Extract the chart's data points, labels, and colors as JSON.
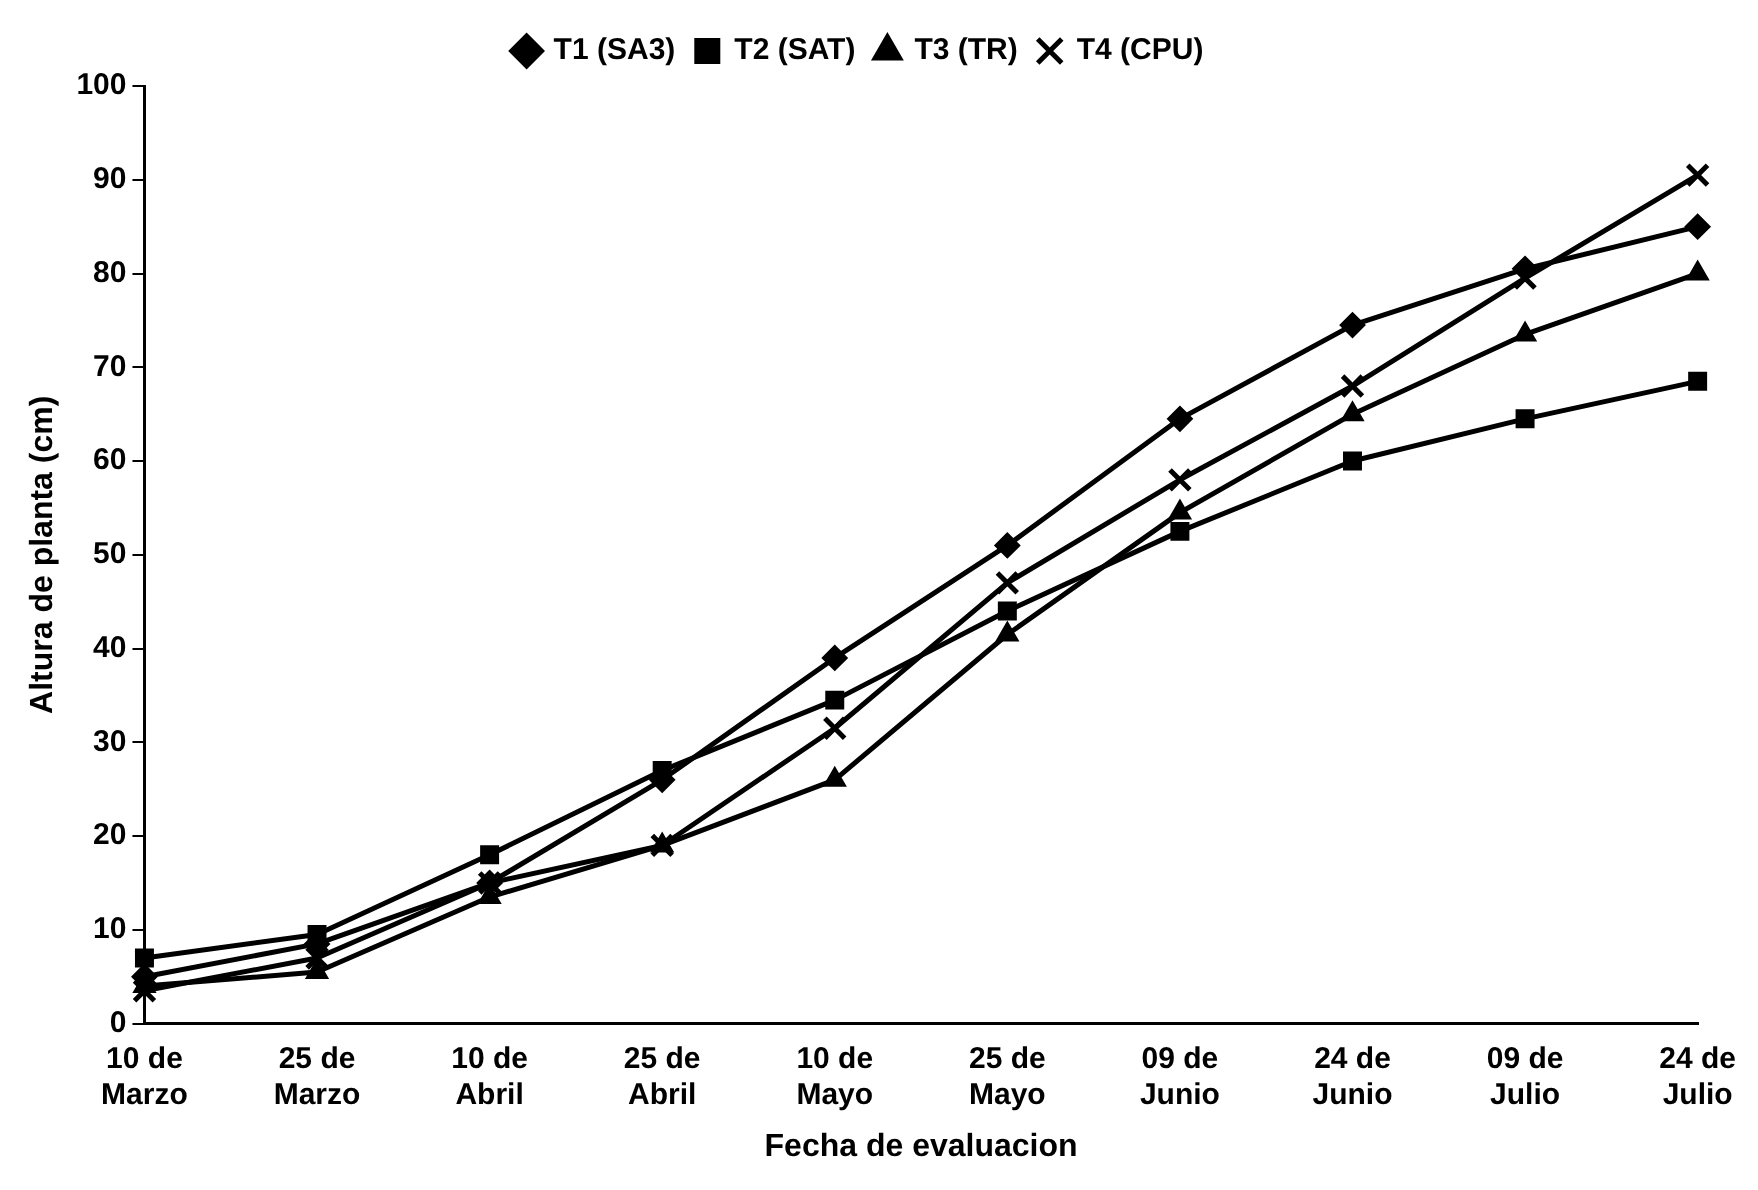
{
  "chart_data": {
    "type": "line",
    "xlabel": "Fecha de evaluacion",
    "ylabel": "Altura de planta (cm)",
    "categories": [
      "10 de\nMarzo",
      "25 de\nMarzo",
      "10 de\nAbril",
      "25 de\nAbril",
      "10 de\nMayo",
      "25 de\nMayo",
      "09 de\nJunio",
      "24 de\nJunio",
      "09 de\nJulio",
      "24 de\nJulio"
    ],
    "series": [
      {
        "name": "T1 (SA3)",
        "color": "#000000",
        "marker": "diamond",
        "values": [
          5,
          8.5,
          15,
          26,
          39,
          51,
          64.5,
          74.5,
          80.5,
          85
        ]
      },
      {
        "name": "T2 (SAT)",
        "color": "#000000",
        "marker": "square",
        "values": [
          7,
          9.5,
          18,
          27,
          34.5,
          44,
          52.5,
          60,
          64.5,
          68.5
        ]
      },
      {
        "name": "T3 (TR)",
        "color": "#000000",
        "marker": "triangle",
        "values": [
          4,
          5.5,
          13.5,
          19,
          26,
          41.5,
          54.5,
          65,
          73.5,
          80
        ]
      },
      {
        "name": "T4 (CPU)",
        "color": "#000000",
        "marker": "cross",
        "values": [
          3.5,
          7,
          15,
          19,
          31.5,
          47,
          58,
          68,
          79.5,
          90.5
        ]
      }
    ],
    "ylim": [
      0,
      100
    ],
    "yticks": [
      0,
      10,
      20,
      30,
      40,
      50,
      60,
      70,
      80,
      90,
      100
    ],
    "grid": false,
    "legend": "top",
    "line_style": "solid"
  }
}
